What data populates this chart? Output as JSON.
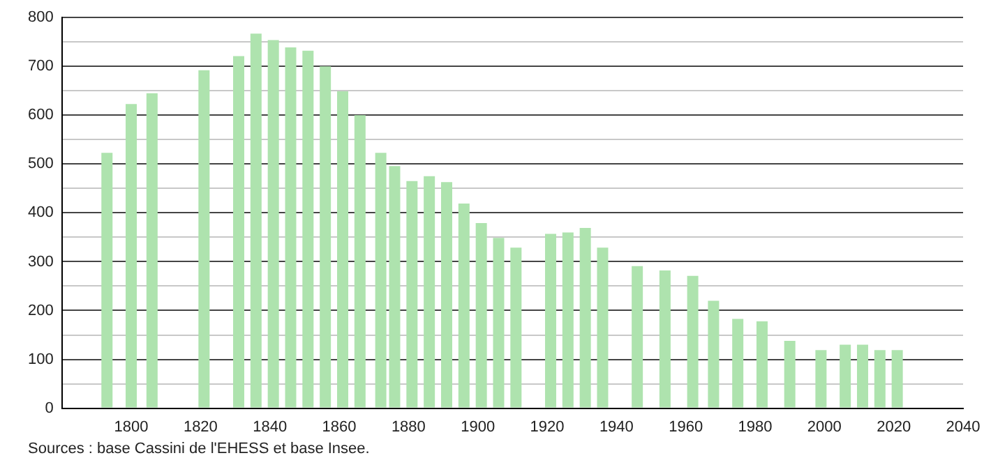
{
  "chart_data": {
    "type": "bar",
    "x": [
      1793,
      1800,
      1806,
      1821,
      1831,
      1836,
      1841,
      1846,
      1851,
      1856,
      1861,
      1866,
      1872,
      1876,
      1881,
      1886,
      1891,
      1896,
      1901,
      1906,
      1911,
      1921,
      1926,
      1931,
      1936,
      1946,
      1954,
      1962,
      1968,
      1975,
      1982,
      1990,
      1999,
      2006,
      2011,
      2016,
      2021
    ],
    "values": [
      523,
      623,
      645,
      692,
      721,
      767,
      754,
      739,
      732,
      700,
      649,
      600,
      523,
      496,
      465,
      475,
      463,
      419,
      379,
      349,
      329,
      357,
      360,
      369,
      329,
      291,
      282,
      271,
      220,
      183,
      178,
      138,
      119,
      130,
      130,
      119,
      119
    ],
    "color": "#aee3ae",
    "xlim": [
      1780,
      2040
    ],
    "xticks": [
      1800,
      1820,
      1840,
      1860,
      1880,
      1900,
      1920,
      1940,
      1960,
      1980,
      2000,
      2020,
      2040
    ],
    "ylim": [
      0,
      800
    ],
    "yticks": [
      0,
      {
        "value": 50,
        "label": null
      },
      100,
      {
        "value": 150,
        "label": null
      },
      200,
      {
        "value": 250,
        "label": null
      },
      300,
      {
        "value": 350,
        "label": null
      },
      400,
      {
        "value": 450,
        "label": null
      },
      500,
      {
        "value": 550,
        "label": null
      },
      600,
      {
        "value": 650,
        "label": null
      },
      700,
      {
        "value": 750,
        "label": null
      },
      800
    ],
    "grid": "y",
    "annotations": [
      "Sources : base Cassini de l'EHESS et base Insee."
    ]
  }
}
